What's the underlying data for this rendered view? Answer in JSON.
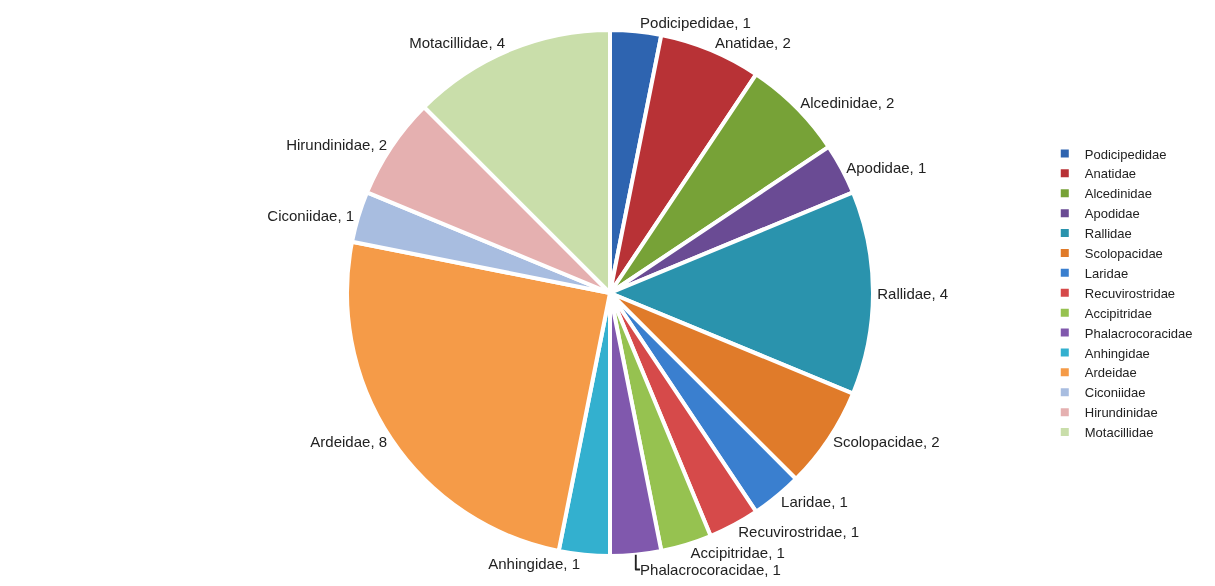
{
  "chart_data": {
    "type": "pie",
    "categories": [
      "Podicipedidae",
      "Anatidae",
      "Alcedinidae",
      "Apodidae",
      "Rallidae",
      "Scolopacidae",
      "Laridae",
      "Recuvirostridae",
      "Accipitridae",
      "Phalacrocoracidae",
      "Anhingidae",
      "Ardeidae",
      "Ciconiidae",
      "Hirundinidae",
      "Motacillidae"
    ],
    "values": [
      1,
      2,
      2,
      1,
      4,
      2,
      1,
      1,
      1,
      1,
      1,
      8,
      1,
      2,
      4
    ],
    "value_labels": [
      "Podicipedidae, 1",
      "Anatidae, 2",
      "Alcedinidae, 2",
      "Apodidae, 1",
      "Rallidae, 4",
      "Scolopacidae, 2",
      "Laridae, 1",
      "Recuvirostridae, 1",
      "Accipitridae, 1",
      "Phalacrocoracidae, 1",
      "Anhingidae, 1",
      "Ardeidae, 8",
      "Ciconiidae, 1",
      "Hirundinidae, 2",
      "Motacillidae, 4"
    ],
    "colors": [
      "#2e64b0",
      "#b83236",
      "#77a237",
      "#6a4b94",
      "#2a93ad",
      "#e07b2a",
      "#3a7fcf",
      "#d64a4a",
      "#96c250",
      "#8058ad",
      "#33b0cf",
      "#f59b48",
      "#a8bde0",
      "#e5b0b0",
      "#c9deaa"
    ],
    "legend": "right"
  }
}
